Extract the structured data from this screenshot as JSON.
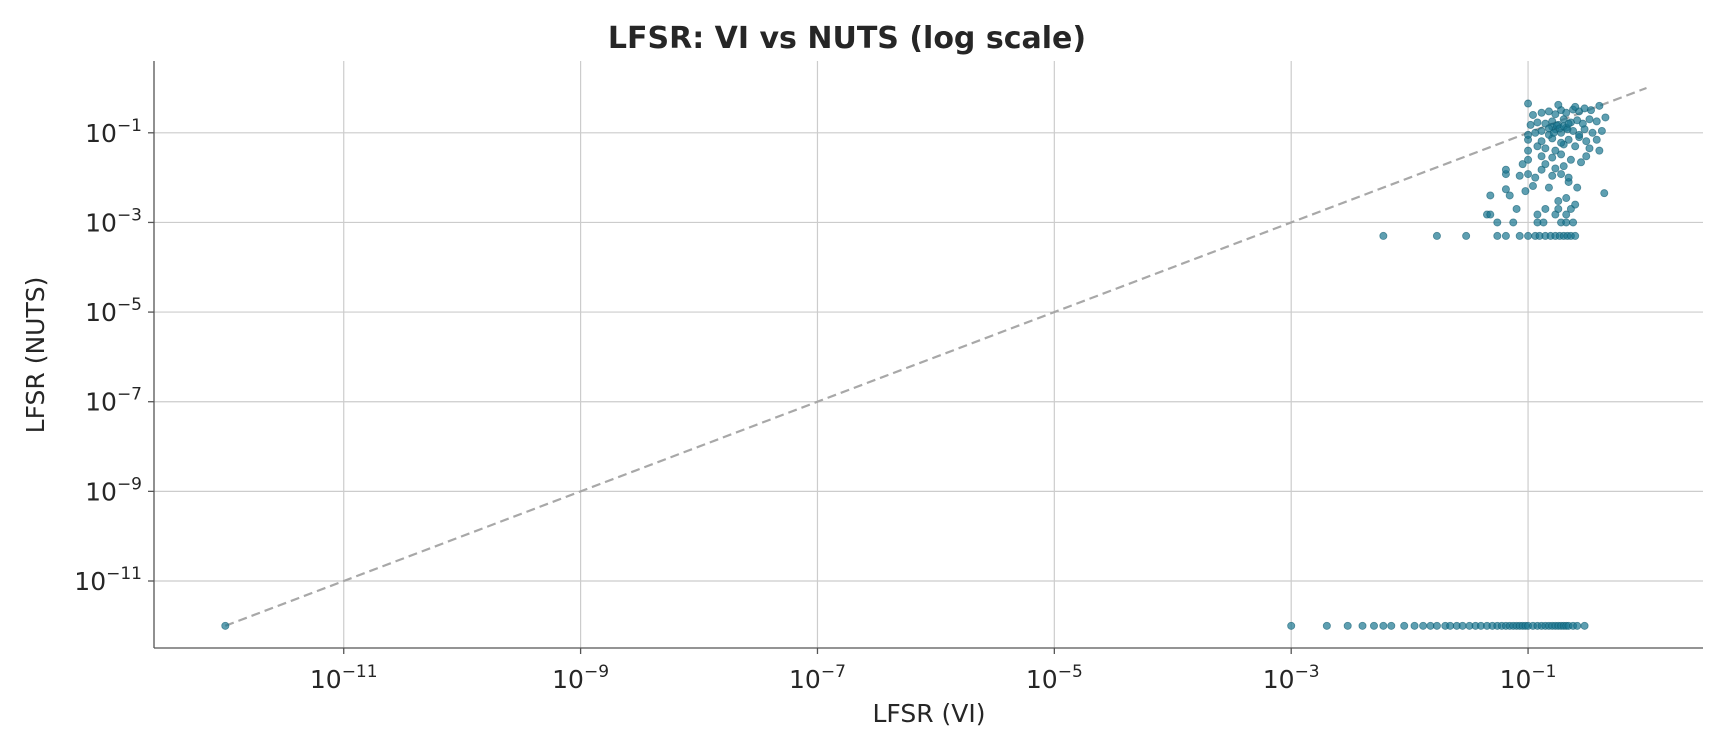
{
  "chart_data": {
    "type": "scatter",
    "title": "LFSR: VI vs NUTS (log scale)",
    "xlabel": "LFSR (VI)",
    "ylabel": "LFSR (NUTS)",
    "xscale": "log",
    "yscale": "log",
    "xlim": [
      2.5e-13,
      3.0
    ],
    "ylim": [
      3.2e-13,
      4.0
    ],
    "grid": true,
    "xticks": [
      {
        "value": 1e-11,
        "base": "10",
        "exp": "−11"
      },
      {
        "value": 1e-09,
        "base": "10",
        "exp": "−9"
      },
      {
        "value": 1e-07,
        "base": "10",
        "exp": "−7"
      },
      {
        "value": 1e-05,
        "base": "10",
        "exp": "−5"
      },
      {
        "value": 0.001,
        "base": "10",
        "exp": "−3"
      },
      {
        "value": 0.1,
        "base": "10",
        "exp": "−1"
      }
    ],
    "yticks": [
      {
        "value": 1e-11,
        "base": "10",
        "exp": "−11"
      },
      {
        "value": 1e-09,
        "base": "10",
        "exp": "−9"
      },
      {
        "value": 1e-07,
        "base": "10",
        "exp": "−7"
      },
      {
        "value": 1e-05,
        "base": "10",
        "exp": "−5"
      },
      {
        "value": 0.001,
        "base": "10",
        "exp": "−3"
      },
      {
        "value": 0.1,
        "base": "10",
        "exp": "−1"
      }
    ],
    "reference_line": {
      "x": [
        1e-12,
        1.0
      ],
      "y": [
        1e-12,
        1.0
      ]
    },
    "colors": {
      "points": "#1a7690",
      "reference": "#a8a8a8",
      "grid": "#cccccc"
    },
    "series": [
      {
        "points": [
          [
            1e-12,
            1e-12
          ],
          [
            0.001,
            1e-12
          ],
          [
            0.002,
            1e-12
          ],
          [
            0.003,
            1e-12
          ],
          [
            0.004,
            1e-12
          ],
          [
            0.005,
            1e-12
          ],
          [
            0.006,
            1e-12
          ],
          [
            0.007,
            1e-12
          ],
          [
            0.009,
            1e-12
          ],
          [
            0.011,
            1e-12
          ],
          [
            0.013,
            1e-12
          ],
          [
            0.015,
            1e-12
          ],
          [
            0.017,
            1e-12
          ],
          [
            0.02,
            1e-12
          ],
          [
            0.022,
            1e-12
          ],
          [
            0.025,
            1e-12
          ],
          [
            0.028,
            1e-12
          ],
          [
            0.032,
            1e-12
          ],
          [
            0.036,
            1e-12
          ],
          [
            0.04,
            1e-12
          ],
          [
            0.045,
            1e-12
          ],
          [
            0.05,
            1e-12
          ],
          [
            0.055,
            1e-12
          ],
          [
            0.06,
            1e-12
          ],
          [
            0.065,
            1e-12
          ],
          [
            0.07,
            1e-12
          ],
          [
            0.075,
            1e-12
          ],
          [
            0.08,
            1e-12
          ],
          [
            0.085,
            1e-12
          ],
          [
            0.09,
            1e-12
          ],
          [
            0.095,
            1e-12
          ],
          [
            0.1,
            1e-12
          ],
          [
            0.11,
            1e-12
          ],
          [
            0.12,
            1e-12
          ],
          [
            0.13,
            1e-12
          ],
          [
            0.14,
            1e-12
          ],
          [
            0.15,
            1e-12
          ],
          [
            0.16,
            1e-12
          ],
          [
            0.17,
            1e-12
          ],
          [
            0.18,
            1e-12
          ],
          [
            0.19,
            1e-12
          ],
          [
            0.2,
            1e-12
          ],
          [
            0.21,
            1e-12
          ],
          [
            0.22,
            1e-12
          ],
          [
            0.24,
            1e-12
          ],
          [
            0.26,
            1e-12
          ],
          [
            0.3,
            1e-12
          ],
          [
            0.006,
            0.0005
          ],
          [
            0.017,
            0.0005
          ],
          [
            0.03,
            0.0005
          ],
          [
            0.055,
            0.0005
          ],
          [
            0.065,
            0.0005
          ],
          [
            0.085,
            0.0005
          ],
          [
            0.1,
            0.0005
          ],
          [
            0.115,
            0.0005
          ],
          [
            0.125,
            0.0005
          ],
          [
            0.14,
            0.0005
          ],
          [
            0.155,
            0.0005
          ],
          [
            0.17,
            0.0005
          ],
          [
            0.185,
            0.0005
          ],
          [
            0.2,
            0.0005
          ],
          [
            0.215,
            0.0005
          ],
          [
            0.23,
            0.0005
          ],
          [
            0.25,
            0.0005
          ],
          [
            0.055,
            0.001
          ],
          [
            0.075,
            0.001
          ],
          [
            0.12,
            0.001
          ],
          [
            0.135,
            0.001
          ],
          [
            0.19,
            0.001
          ],
          [
            0.21,
            0.001
          ],
          [
            0.24,
            0.001
          ],
          [
            0.045,
            0.0015
          ],
          [
            0.048,
            0.0015
          ],
          [
            0.12,
            0.0015
          ],
          [
            0.17,
            0.0015
          ],
          [
            0.21,
            0.0015
          ],
          [
            0.08,
            0.002
          ],
          [
            0.14,
            0.002
          ],
          [
            0.18,
            0.002
          ],
          [
            0.23,
            0.002
          ],
          [
            0.25,
            0.0025
          ],
          [
            0.048,
            0.004
          ],
          [
            0.07,
            0.004
          ],
          [
            0.095,
            0.005
          ],
          [
            0.18,
            0.003
          ],
          [
            0.21,
            0.0035
          ],
          [
            0.44,
            0.0045
          ],
          [
            0.065,
            0.0055
          ],
          [
            0.11,
            0.0065
          ],
          [
            0.15,
            0.006
          ],
          [
            0.22,
            0.008
          ],
          [
            0.26,
            0.006
          ],
          [
            0.065,
            0.012
          ],
          [
            0.085,
            0.011
          ],
          [
            0.1,
            0.012
          ],
          [
            0.115,
            0.01
          ],
          [
            0.13,
            0.015
          ],
          [
            0.16,
            0.011
          ],
          [
            0.19,
            0.012
          ],
          [
            0.22,
            0.01
          ],
          [
            0.065,
            0.015
          ],
          [
            0.09,
            0.02
          ],
          [
            0.14,
            0.02
          ],
          [
            0.17,
            0.016
          ],
          [
            0.2,
            0.018
          ],
          [
            0.1,
            0.025
          ],
          [
            0.13,
            0.03
          ],
          [
            0.16,
            0.028
          ],
          [
            0.19,
            0.033
          ],
          [
            0.23,
            0.025
          ],
          [
            0.28,
            0.022
          ],
          [
            0.31,
            0.03
          ],
          [
            0.1,
            0.04
          ],
          [
            0.12,
            0.05
          ],
          [
            0.14,
            0.045
          ],
          [
            0.17,
            0.04
          ],
          [
            0.2,
            0.055
          ],
          [
            0.25,
            0.05
          ],
          [
            0.33,
            0.045
          ],
          [
            0.4,
            0.04
          ],
          [
            0.1,
            0.07
          ],
          [
            0.13,
            0.065
          ],
          [
            0.16,
            0.075
          ],
          [
            0.19,
            0.06
          ],
          [
            0.22,
            0.07
          ],
          [
            0.27,
            0.08
          ],
          [
            0.31,
            0.065
          ],
          [
            0.38,
            0.07
          ],
          [
            0.1,
            0.09
          ],
          [
            0.115,
            0.1
          ],
          [
            0.13,
            0.11
          ],
          [
            0.15,
            0.09
          ],
          [
            0.17,
            0.12
          ],
          [
            0.19,
            0.1
          ],
          [
            0.21,
            0.13
          ],
          [
            0.24,
            0.11
          ],
          [
            0.27,
            0.09
          ],
          [
            0.3,
            0.12
          ],
          [
            0.35,
            0.1
          ],
          [
            0.42,
            0.11
          ],
          [
            0.105,
            0.15
          ],
          [
            0.12,
            0.17
          ],
          [
            0.14,
            0.16
          ],
          [
            0.16,
            0.18
          ],
          [
            0.18,
            0.15
          ],
          [
            0.2,
            0.2
          ],
          [
            0.23,
            0.17
          ],
          [
            0.26,
            0.19
          ],
          [
            0.29,
            0.16
          ],
          [
            0.33,
            0.2
          ],
          [
            0.38,
            0.18
          ],
          [
            0.45,
            0.22
          ],
          [
            0.11,
            0.25
          ],
          [
            0.13,
            0.28
          ],
          [
            0.15,
            0.3
          ],
          [
            0.17,
            0.26
          ],
          [
            0.19,
            0.32
          ],
          [
            0.21,
            0.28
          ],
          [
            0.24,
            0.33
          ],
          [
            0.27,
            0.3
          ],
          [
            0.3,
            0.35
          ],
          [
            0.34,
            0.32
          ],
          [
            0.4,
            0.4
          ],
          [
            0.1,
            0.45
          ],
          [
            0.18,
            0.42
          ],
          [
            0.25,
            0.38
          ],
          [
            0.16,
            0.135
          ],
          [
            0.175,
            0.145
          ],
          [
            0.185,
            0.125
          ],
          [
            0.2,
            0.14
          ],
          [
            0.215,
            0.12
          ],
          [
            0.15,
            0.125
          ],
          [
            0.22,
            0.16
          ],
          [
            0.165,
            0.1
          ]
        ]
      }
    ]
  }
}
